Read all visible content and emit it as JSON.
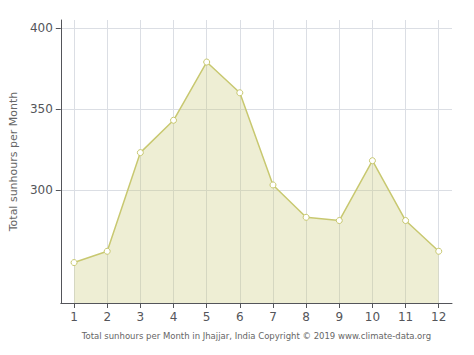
{
  "chart_data": {
    "type": "area",
    "x": [
      1,
      2,
      3,
      4,
      5,
      6,
      7,
      8,
      9,
      10,
      11,
      12
    ],
    "values": [
      255,
      262,
      323,
      343,
      379,
      360,
      303,
      283,
      281,
      318,
      281,
      262
    ],
    "color": "#c8c870",
    "marker": "circle",
    "ylabel": "Total sunhours per Month",
    "xlabel": "Total sunhours per Month in Jhajjar, India Copyright © 2019 www.climate-data.org",
    "xlim": [
      0.6,
      12.4
    ],
    "xticks": [
      1,
      2,
      3,
      4,
      5,
      6,
      7,
      8,
      9,
      10,
      11,
      12
    ],
    "ylim": [
      230,
      405
    ],
    "yticks": [
      300,
      350,
      400
    ],
    "grid": true
  }
}
